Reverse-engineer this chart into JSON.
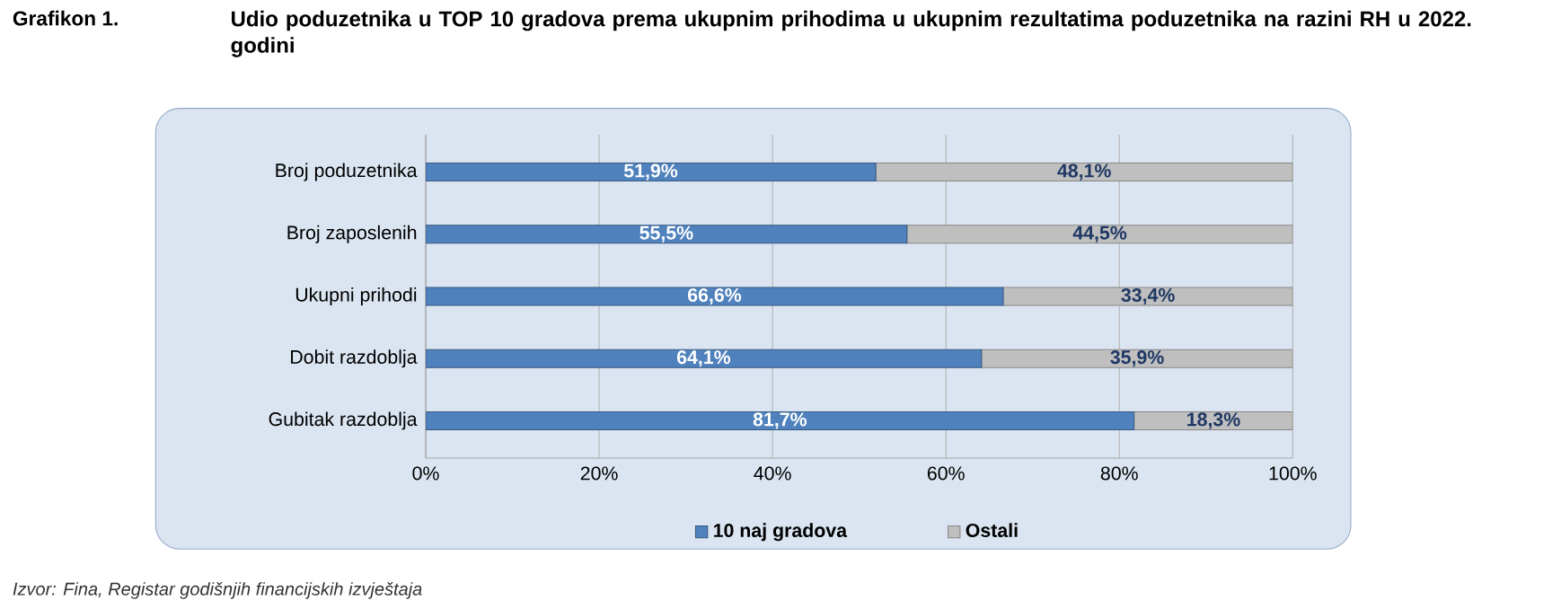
{
  "chart_data": {
    "type": "bar",
    "orientation": "horizontal",
    "stacked": true,
    "title": "Grafikon 1.",
    "subtitle": "Udio poduzetnika u TOP 10 gradova prema ukupnim prihodima u ukupnim rezultatima poduzetnika na razini RH u 2022. godini",
    "categories": [
      "Broj poduzetnika",
      "Broj zaposlenih",
      "Ukupni prihodi",
      "Dobit razdoblja",
      "Gubitak razdoblja"
    ],
    "series": [
      {
        "name": "10 naj gradova",
        "color": "#4f81bd",
        "values": [
          51.9,
          55.5,
          66.6,
          64.1,
          81.7
        ],
        "value_labels": [
          "51,9%",
          "55,5%",
          "66,6%",
          "64,1%",
          "81,7%"
        ]
      },
      {
        "name": "Ostali",
        "color": "#bfbfbf",
        "values": [
          48.1,
          44.5,
          33.4,
          35.9,
          18.3
        ],
        "value_labels": [
          "48,1%",
          "44,5%",
          "33,4%",
          "35,9%",
          "18,3%"
        ]
      }
    ],
    "xlim": [
      0,
      100
    ],
    "xticks": [
      {
        "value": 0,
        "label": "0%"
      },
      {
        "value": 20,
        "label": "20%"
      },
      {
        "value": 40,
        "label": "40%"
      },
      {
        "value": 60,
        "label": "60%"
      },
      {
        "value": 80,
        "label": "80%"
      },
      {
        "value": 100,
        "label": "100%"
      }
    ],
    "grid": "x",
    "legend": "bottom",
    "annotations": [
      "Izvor: Fina, Registar godišnjih financijskih izvještaja"
    ]
  }
}
